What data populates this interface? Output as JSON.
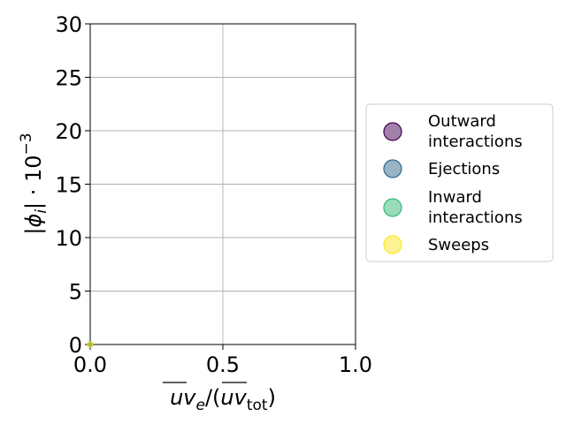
{
  "chart_data": {
    "type": "scatter",
    "xlim": [
      0,
      1
    ],
    "ylim": [
      0,
      30
    ],
    "x_ticks": [
      "0.0",
      "0.5",
      "1.0"
    ],
    "x_tick_values": [
      0,
      0.5,
      1
    ],
    "y_ticks": [
      "0",
      "5",
      "10",
      "15",
      "20",
      "25",
      "30"
    ],
    "y_tick_values": [
      0,
      5,
      10,
      15,
      20,
      25,
      30
    ],
    "grid": true,
    "legend_position": "right",
    "xlabel": {
      "main": "uv",
      "sub1": "e",
      "mid": "/(",
      "main2": "uv",
      "sub2": "tot",
      "end": ")"
    },
    "ylabel": {
      "pre": "|",
      "phi": "ϕ",
      "sub": "i",
      "post": "| · 10",
      "sup": "−3"
    },
    "series": [
      {
        "name_lines": [
          "Outward",
          "interactions"
        ],
        "color": "#440154",
        "points": [
          [
            0.0,
            0.0
          ]
        ]
      },
      {
        "name_lines": [
          "Ejections"
        ],
        "color": "#31688e",
        "points": [
          [
            0.0,
            0.0
          ]
        ]
      },
      {
        "name_lines": [
          "Inward",
          "interactions"
        ],
        "color": "#35b779",
        "points": [
          [
            0.0,
            0.0
          ]
        ]
      },
      {
        "name_lines": [
          "Sweeps"
        ],
        "color": "#fde725",
        "points": [
          [
            0.0,
            0.0
          ]
        ]
      }
    ]
  }
}
